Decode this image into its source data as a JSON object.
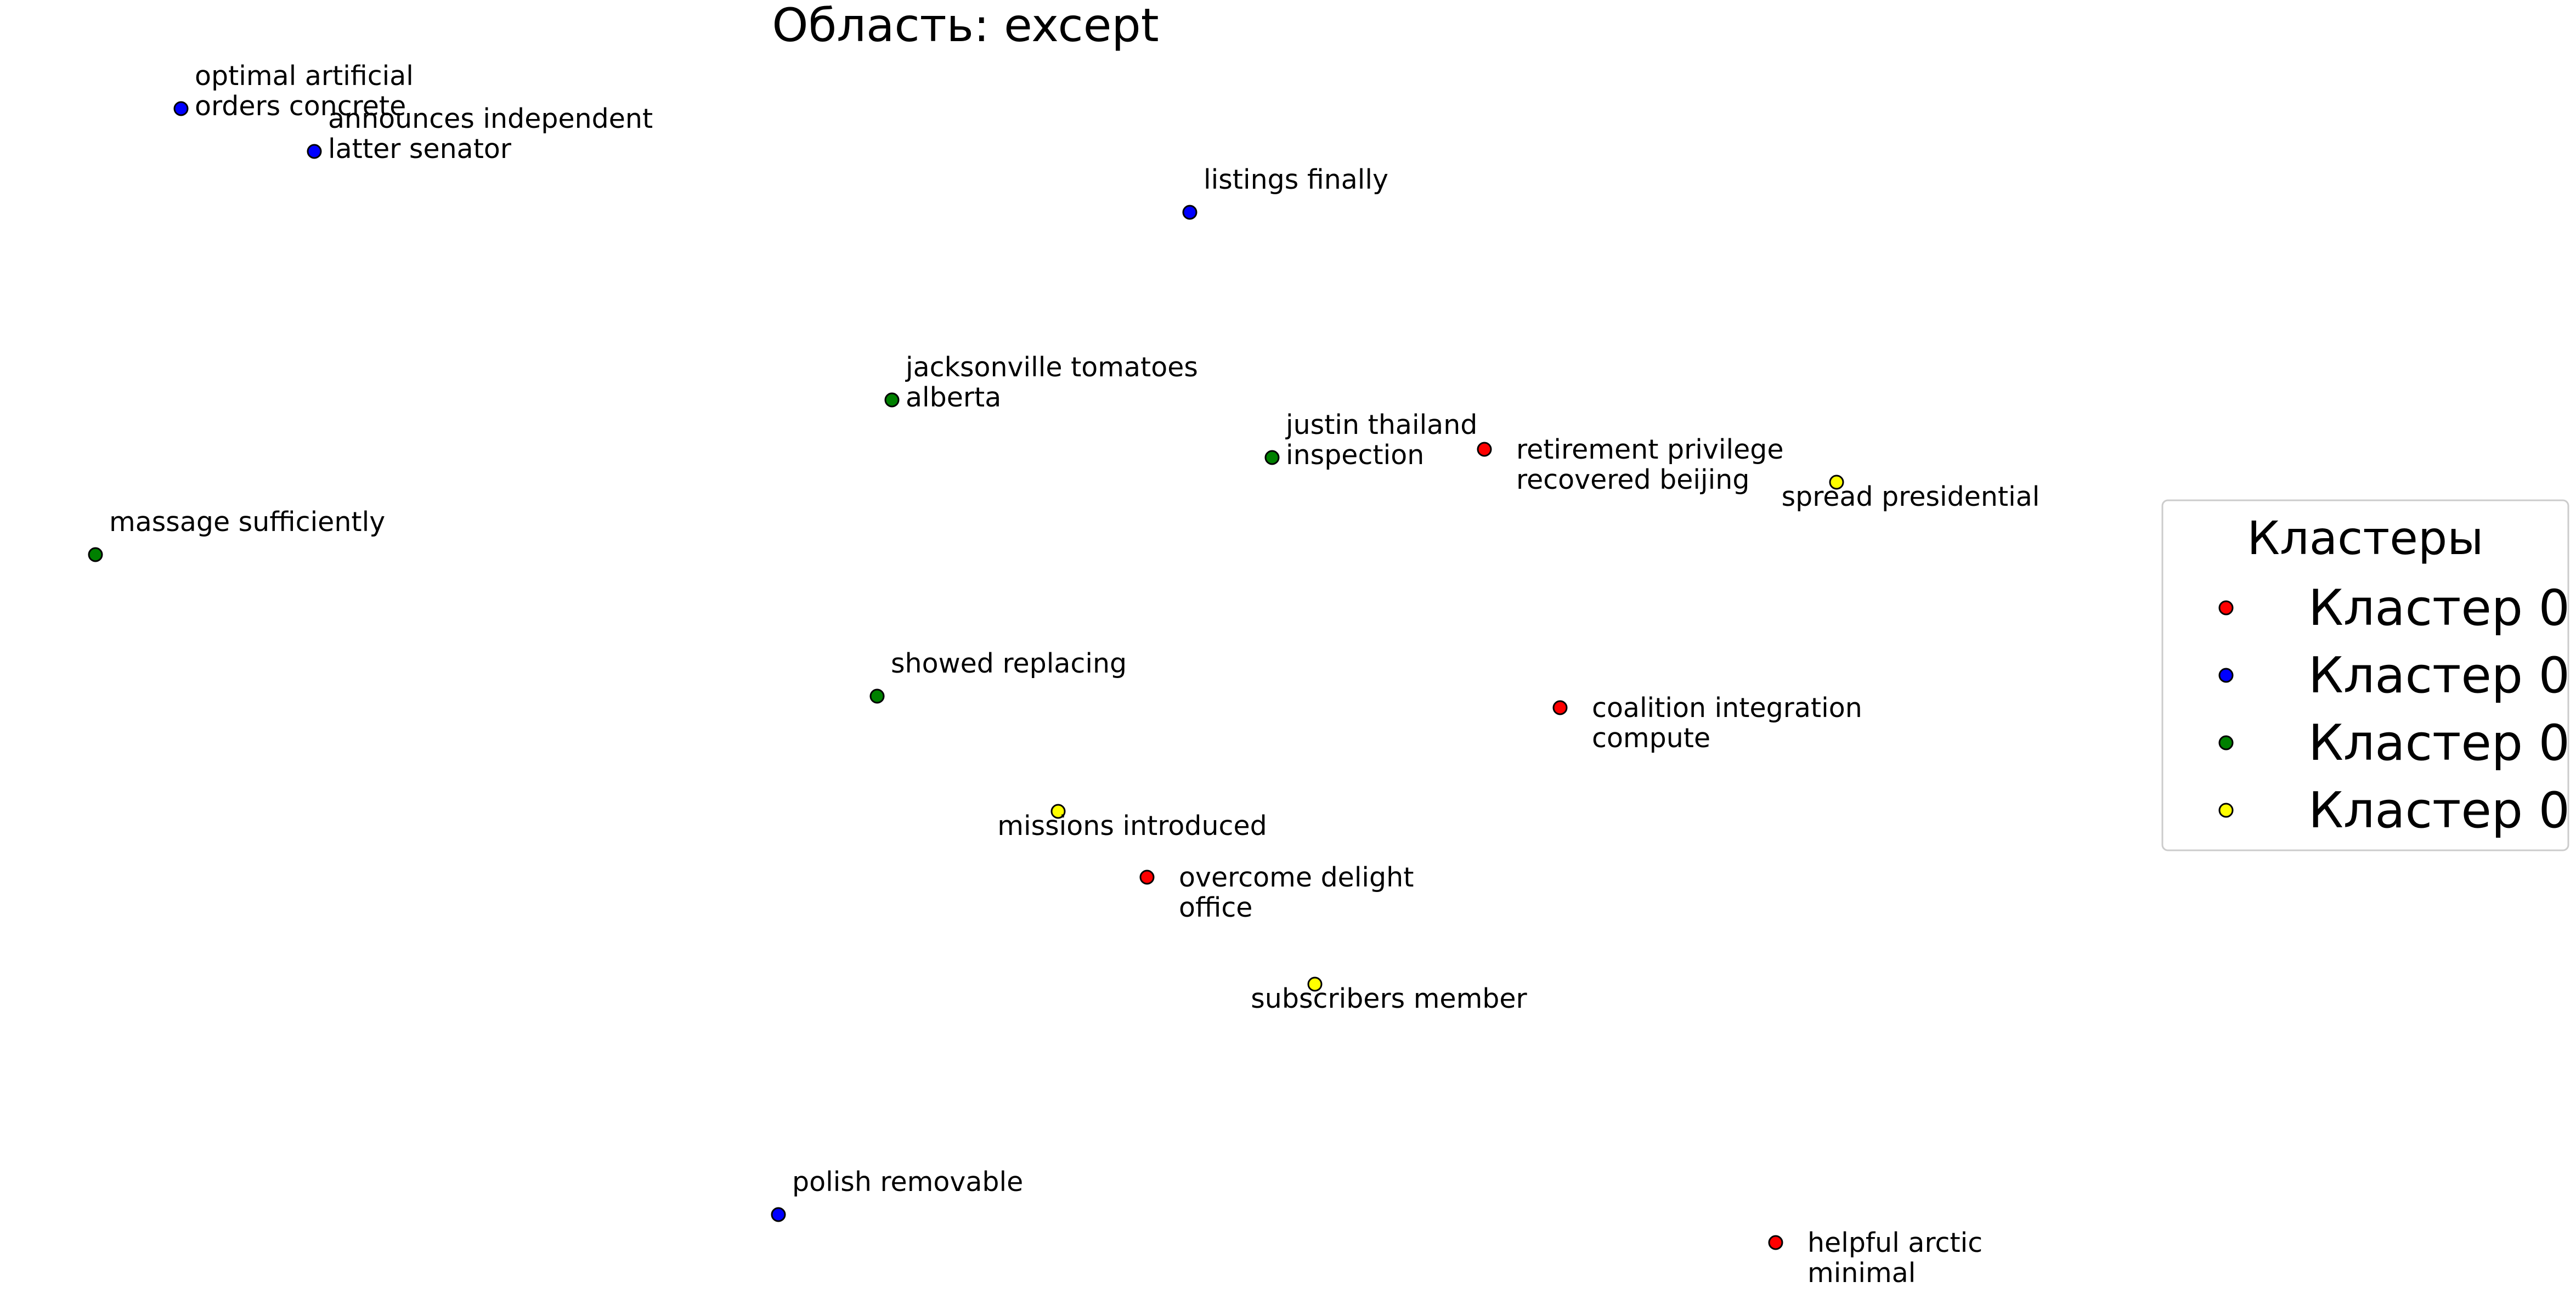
{
  "chart_data": {
    "type": "scatter",
    "title": "Область: except",
    "xlabel": "",
    "ylabel": "",
    "axes_visible": false,
    "grid": false,
    "xlim": [
      0,
      1565
    ],
    "ylim": [
      790,
      0
    ],
    "legend": {
      "title": "Кластеры",
      "placement": "right",
      "entries": [
        {
          "label": "Кластер 0",
          "color": "#ff0000"
        },
        {
          "label": "Кластер 0",
          "color": "#0000ff"
        },
        {
          "label": "Кластер 0",
          "color": "#008000"
        },
        {
          "label": "Кластер 0",
          "color": "#ffff00"
        }
      ]
    },
    "points": [
      {
        "x": 110,
        "y": 66,
        "lines": [
          "optimal artificial",
          "orders concrete"
        ],
        "cluster": 1,
        "label_side": "upper-right"
      },
      {
        "x": 191,
        "y": 92,
        "lines": [
          "announces independent",
          "latter senator"
        ],
        "cluster": 1,
        "label_side": "upper-right"
      },
      {
        "x": 723,
        "y": 129,
        "lines": [
          "listings finally"
        ],
        "cluster": 1,
        "label_side": "upper-right"
      },
      {
        "x": 542,
        "y": 243,
        "lines": [
          "jacksonville tomatoes",
          "alberta"
        ],
        "cluster": 2,
        "label_side": "upper-right"
      },
      {
        "x": 773,
        "y": 278,
        "lines": [
          "justin thailand",
          "inspection"
        ],
        "cluster": 2,
        "label_side": "upper-right"
      },
      {
        "x": 902,
        "y": 273,
        "lines": [
          "retirement privilege",
          "recovered beijing"
        ],
        "cluster": 0,
        "label_side": "right"
      },
      {
        "x": 1116,
        "y": 293,
        "lines": [
          "spread presidential"
        ],
        "cluster": 3,
        "label_side": "lower"
      },
      {
        "x": 58,
        "y": 337,
        "lines": [
          "massage sufficiently"
        ],
        "cluster": 2,
        "label_side": "upper-right"
      },
      {
        "x": 533,
        "y": 423,
        "lines": [
          "showed replacing"
        ],
        "cluster": 2,
        "label_side": "upper-right"
      },
      {
        "x": 948,
        "y": 430,
        "lines": [
          "coalition integration",
          "compute"
        ],
        "cluster": 0,
        "label_side": "right"
      },
      {
        "x": 643,
        "y": 493,
        "lines": [
          "missions introduced"
        ],
        "cluster": 3,
        "label_side": "lower"
      },
      {
        "x": 697,
        "y": 533,
        "lines": [
          "overcome delight",
          "office"
        ],
        "cluster": 0,
        "label_side": "right"
      },
      {
        "x": 799,
        "y": 598,
        "lines": [
          "subscribers member"
        ],
        "cluster": 3,
        "label_side": "lower"
      },
      {
        "x": 473,
        "y": 738,
        "lines": [
          "polish removable"
        ],
        "cluster": 1,
        "label_side": "upper-right"
      },
      {
        "x": 1079,
        "y": 755,
        "lines": [
          "helpful arctic",
          "minimal"
        ],
        "cluster": 0,
        "label_side": "right"
      }
    ]
  }
}
